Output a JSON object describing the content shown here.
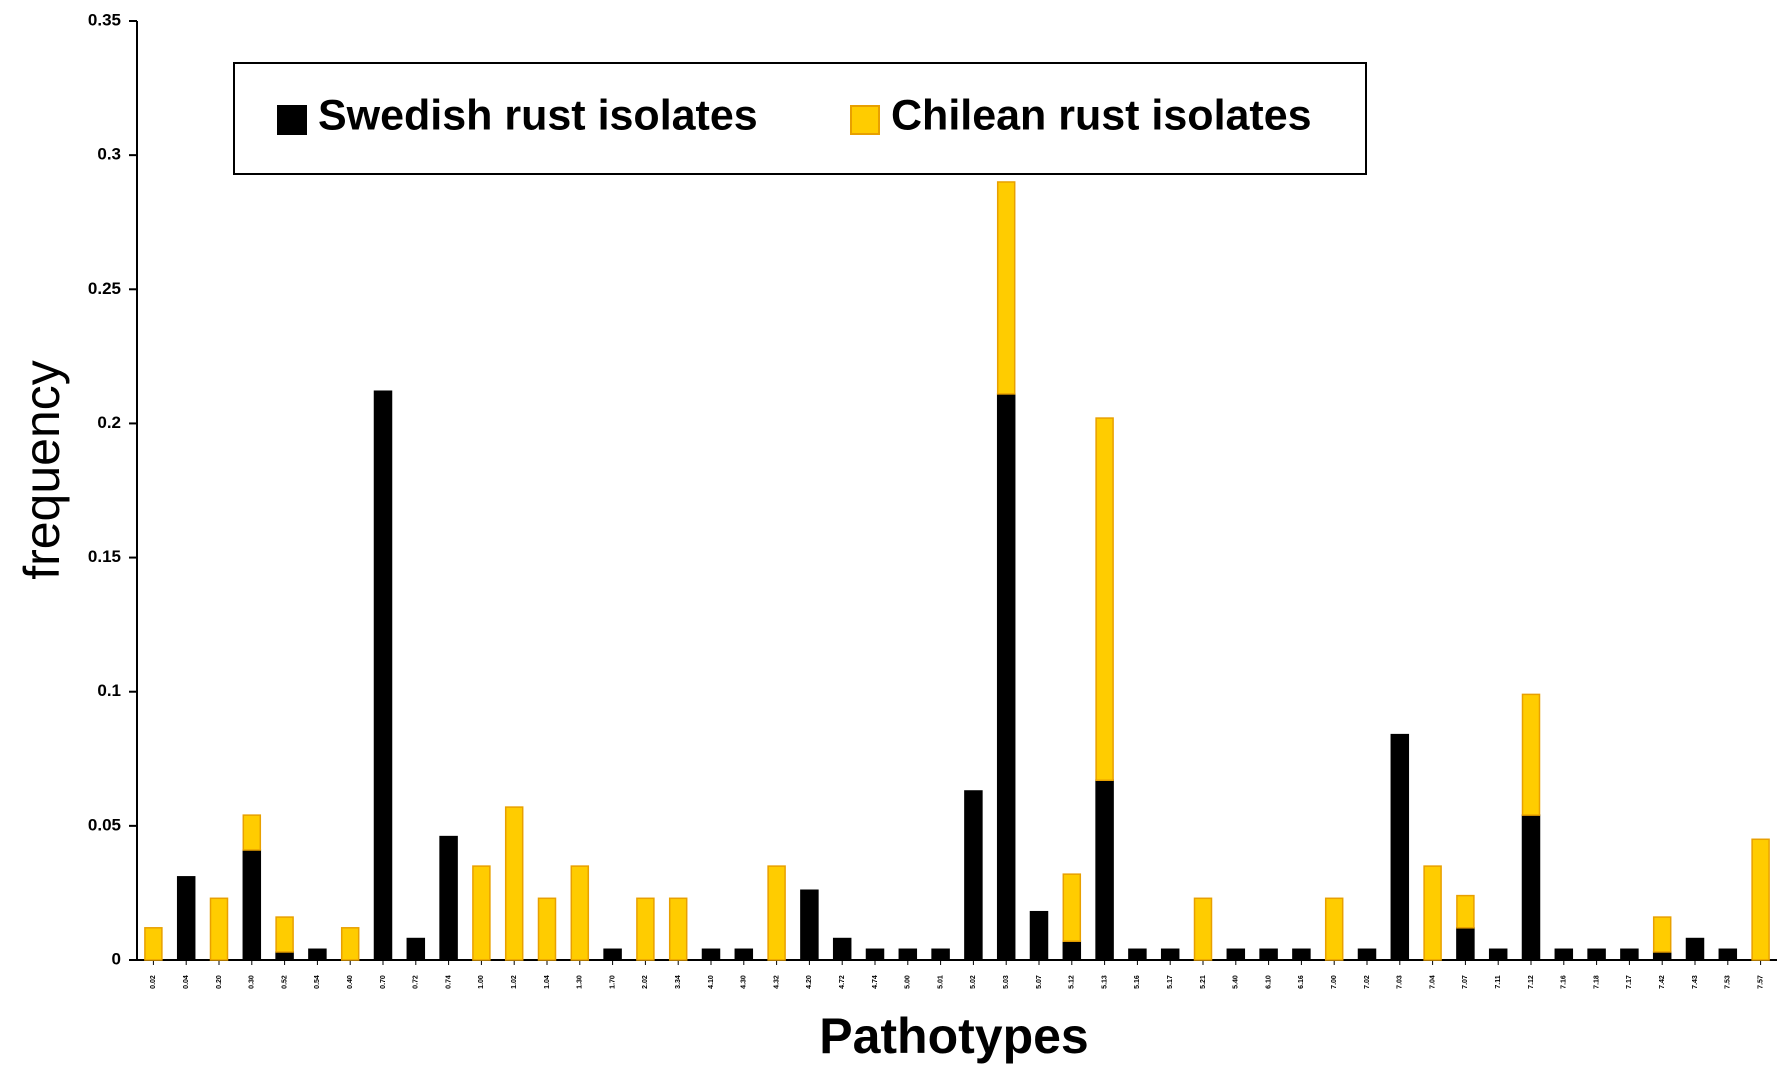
{
  "chart_data": {
    "type": "stacked_bar",
    "y_label": "frequency",
    "x_label": "Pathotypes",
    "categories": [
      "0.02",
      "0.04",
      "0.20",
      "0.30",
      "0.52",
      "0.54",
      "0.40",
      "0.70",
      "0.72",
      "0.74",
      "1.00",
      "1.02",
      "1.04",
      "1.30",
      "1.70",
      "2.02",
      "3.34",
      "4.10",
      "4.30",
      "4.32",
      "4.20",
      "4.72",
      "4.74",
      "5.00",
      "5.01",
      "5.02",
      "5.03",
      "5.07",
      "5.12",
      "5.13",
      "5.16",
      "5.17",
      "5.21",
      "5.40",
      "6.10",
      "6.16",
      "7.00",
      "7.02",
      "7.03",
      "7.04",
      "7.07",
      "7.11",
      "7.12",
      "7.16",
      "7.18",
      "7.17",
      "7.42",
      "7.43",
      "7.53",
      "7.57"
    ],
    "series": [
      {
        "name": "Swedish rust isolates",
        "color": "#000000",
        "values": [
          0,
          0.031,
          0,
          0.041,
          0.003,
          0.004,
          0,
          0.212,
          0.008,
          0.046,
          0,
          0,
          0,
          0,
          0.004,
          0,
          0,
          0.004,
          0.004,
          0,
          0.026,
          0.008,
          0.004,
          0.004,
          0.004,
          0.063,
          0.211,
          0.018,
          0.007,
          0.067,
          0.004,
          0.004,
          0,
          0.004,
          0.004,
          0.004,
          0,
          0.004,
          0.084,
          0,
          0.012,
          0.004,
          0.054,
          0.004,
          0.004,
          0.004,
          0.003,
          0.008,
          0.004,
          0
        ]
      },
      {
        "name": "Chilean rust isolates",
        "color": "#ffcc00",
        "values": [
          0.012,
          0,
          0.023,
          0.013,
          0.013,
          0,
          0.012,
          0,
          0,
          0,
          0.035,
          0.057,
          0.023,
          0.035,
          0,
          0.023,
          0.023,
          0,
          0,
          0.035,
          0,
          0,
          0,
          0,
          0,
          0,
          0.079,
          0,
          0.025,
          0.135,
          0,
          0,
          0.023,
          0,
          0,
          0,
          0.023,
          0,
          0,
          0.035,
          0.012,
          0,
          0.045,
          0,
          0,
          0,
          0.013,
          0,
          0,
          0.045
        ]
      }
    ],
    "ylim": [
      0,
      0.35
    ],
    "yticks": [
      0,
      0.05,
      0.1,
      0.15,
      0.2,
      0.25,
      0.3,
      0.35
    ]
  }
}
